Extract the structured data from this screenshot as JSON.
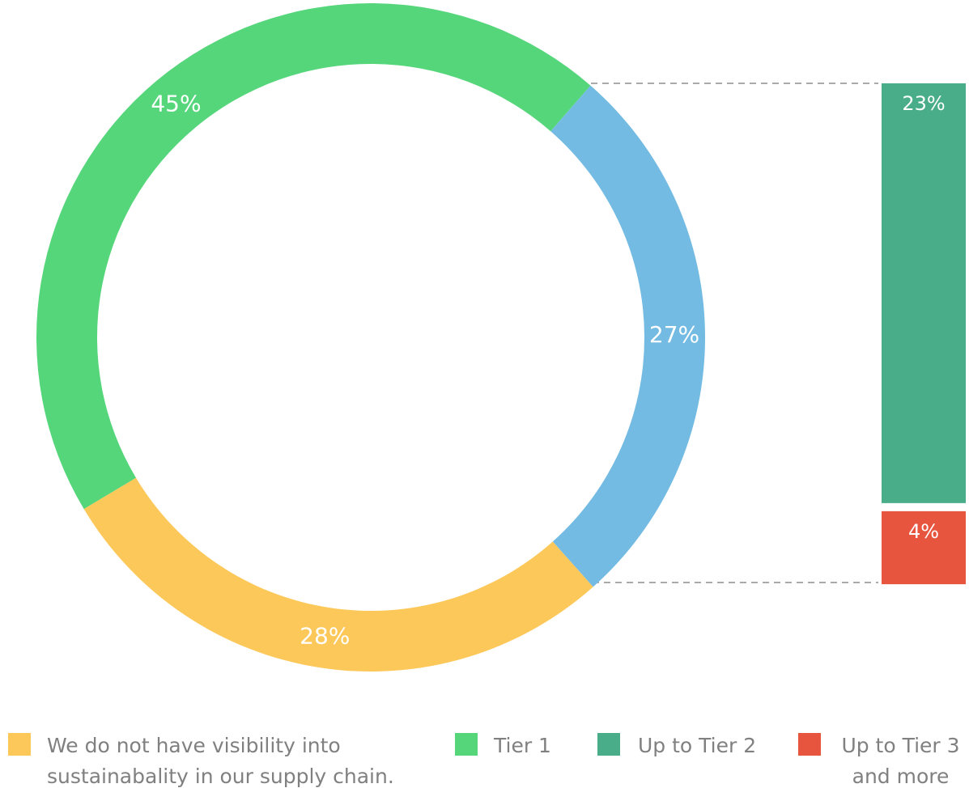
{
  "chart_data": [
    {
      "type": "pie",
      "donut": true,
      "categories": [
        "We do not have visibility into sustainabality in our supply chain.",
        "Tier 1",
        null
      ],
      "values": [
        28,
        45,
        27
      ],
      "value_labels": [
        "28%",
        "45%",
        "27%"
      ],
      "colors": [
        "#fdc85a",
        "#56d67b",
        "#74bbe3"
      ]
    },
    {
      "type": "bar",
      "stacked": true,
      "series": [
        {
          "name": "Up to Tier 2",
          "color": "#4aad8a",
          "values": [
            23
          ],
          "value_labels": [
            "23%"
          ]
        },
        {
          "name": "Up to Tier 3 and more",
          "color": "#e8553f",
          "values": [
            4
          ],
          "value_labels": [
            "4%"
          ]
        }
      ]
    }
  ]
}
